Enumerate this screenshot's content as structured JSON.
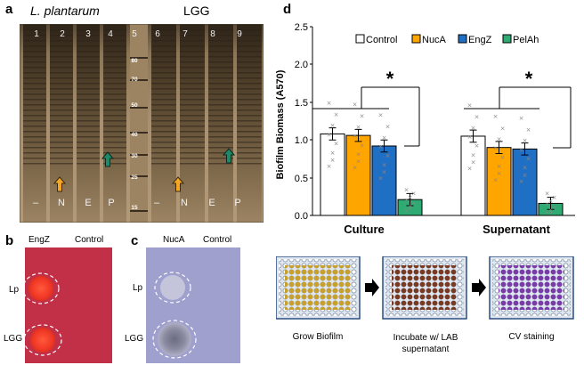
{
  "panel_a": {
    "letter": "a",
    "species_left": "L. plantarum",
    "species_right": "LGG",
    "lane_numbers": [
      "1",
      "2",
      "3",
      "4",
      "5",
      "6",
      "7",
      "8",
      "9"
    ],
    "ladder_marks": [
      "80",
      "70",
      "50",
      "40",
      "30",
      "25",
      "15"
    ],
    "bottom_labels_left": [
      "–",
      "N",
      "E",
      "P"
    ],
    "bottom_labels_right": [
      "–",
      "N",
      "E",
      "P"
    ],
    "arrow_orange_color": "#f5a623",
    "arrow_green_color": "#1e8a6a"
  },
  "panel_b": {
    "letter": "b",
    "col_labels": [
      "EngZ",
      "Control"
    ],
    "row_labels": [
      "Lp",
      "LGG"
    ]
  },
  "panel_c": {
    "letter": "c",
    "col_labels": [
      "NucA",
      "Control"
    ],
    "row_labels": [
      "Lp",
      "LGG"
    ]
  },
  "panel_d": {
    "letter": "d",
    "chart_data": {
      "type": "bar",
      "ylabel": "Biofilm Biomass (A570)",
      "ylim": [
        0,
        2.5
      ],
      "yticks": [
        "0.0",
        "0.5",
        "1.0",
        "1.5",
        "2.0",
        "2.5"
      ],
      "categories": [
        "Culture",
        "Supernatant"
      ],
      "series": [
        {
          "name": "Control",
          "color": "#ffffff",
          "values": [
            1.08,
            1.05
          ]
        },
        {
          "name": "NucA",
          "color": "#ffa500",
          "values": [
            1.06,
            0.9
          ]
        },
        {
          "name": "EngZ",
          "color": "#1f6fc5",
          "values": [
            0.92,
            0.88
          ]
        },
        {
          "name": "PelAh",
          "color": "#2eaa72",
          "values": [
            0.21,
            0.16
          ]
        }
      ],
      "annotations": [
        "*",
        "*"
      ]
    }
  },
  "workflow": {
    "steps": [
      "Grow Biofilm",
      "Incubate w/ LAB supernatant",
      "CV staining"
    ]
  }
}
